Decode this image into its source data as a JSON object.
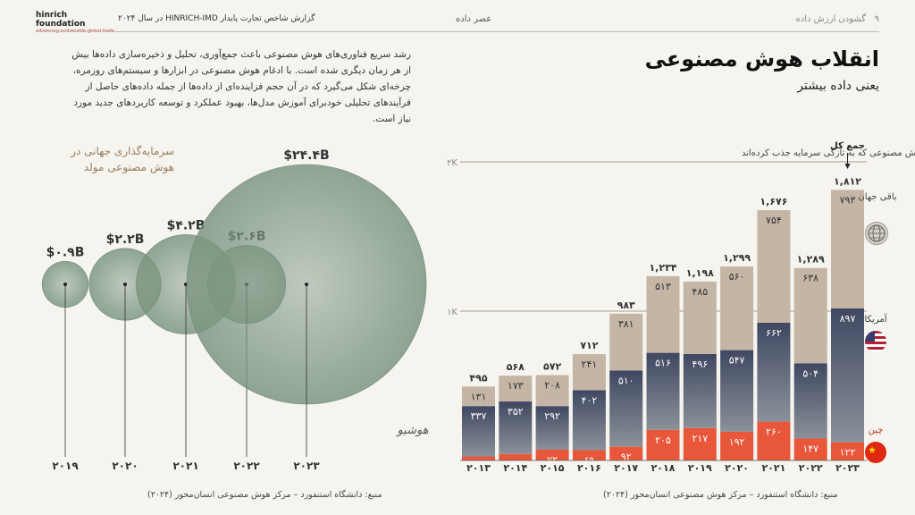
{
  "header": {
    "page_number": "۹",
    "page_section": "گشودن ارزش داده",
    "section": "عصر داده",
    "report": "گزارش شاخص تجارت پایدار HINRICH-IMD در سال ۲۰۲۴",
    "logo_name": "hinrich foundation",
    "logo_tagline": "advancing sustainable global trade"
  },
  "title": "انقلاب هوش مصنوعی",
  "subtitle": "یعنی داده بیشتر",
  "intro": "رشد سریع فناوری‌های هوش مصنوعی باعث جمع‌آوری،  تحلیل و ذخیره‌سازی داده‌ها بیش از هر زمان دیگری شده است. با ادغام هوش مصنوعی در ابزارها و سیستم‌های روزمره، چرخه‌ای شکل می‌گیرد که در آن حجم فزاینده‌ای از داده‌ها از جمله داده‌های حاصل از فرآیندهای تحلیلی خودبرای آموزش مدل‌ها، بهبود عملکرد و توسعه کاربردهای جدید مورد نیاز است.",
  "watermark": "هوشیو",
  "colors": {
    "us": "#505a6e",
    "china": "#e8573a",
    "rest": "#c4b5a5",
    "bubble": "#7c9681"
  },
  "left_source": "منبع: دانشگاه استنفورد – مرکز هوش مصنوعی انسان‌محور (۲۰۲۴)",
  "right_source": "منبع: دانشگاه استنفورد – مرکز هوش مصنوعی انسان‌محور (۲۰۲۴)",
  "chart_data": [
    {
      "type": "bubble",
      "title": "سرمایه‌گذاری جهانی در هوش مصنوعی مولد",
      "categories": [
        "۲۰۱۹",
        "۲۰۲۰",
        "۲۰۲۱",
        "۲۰۲۲",
        "۲۰۲۳"
      ],
      "values": [
        0.9,
        2.2,
        4.2,
        2.6,
        24.4
      ],
      "labels": [
        "$۰.۹B",
        "$۲.۲B",
        "$۴.۲B",
        "$۲.۶B",
        "$۲۴.۴B"
      ]
    },
    {
      "type": "bar",
      "stacked": true,
      "title": "تعداد شرکت‌های هوش مصنوعی که به تازگی سرمایه جذب کرده‌اند",
      "categories": [
        "۲۰۱۳",
        "۲۰۱۴",
        "۲۰۱۵",
        "۲۰۱۶",
        "۲۰۱۷",
        "۲۰۱۸",
        "۲۰۱۹",
        "۲۰۲۰",
        "۲۰۲۱",
        "۲۰۲۲",
        "۲۰۲۳"
      ],
      "series": [
        {
          "name": "چین",
          "values": [
            27,
            43,
            72,
            69,
            92,
            205,
            217,
            192,
            260,
            147,
            122
          ],
          "labels": [
            "۲۷",
            "۴۳",
            "۷۲",
            "۶۹",
            "۹۲",
            "۲۰۵",
            "۲۱۷",
            "۱۹۲",
            "۲۶۰",
            "۱۴۷",
            "۱۲۲"
          ]
        },
        {
          "name": "آمریکا",
          "values": [
            337,
            352,
            292,
            402,
            510,
            516,
            496,
            547,
            662,
            504,
            897
          ],
          "labels": [
            "۳۳۷",
            "۳۵۲",
            "۲۹۲",
            "۴۰۲",
            "۵۱۰",
            "۵۱۶",
            "۴۹۶",
            "۵۴۷",
            "۶۶۲",
            "۵۰۴",
            "۸۹۷"
          ]
        },
        {
          "name": "باقی جهان",
          "values": [
            131,
            173,
            208,
            241,
            381,
            513,
            485,
            560,
            754,
            638,
            793
          ],
          "labels": [
            "۱۳۱",
            "۱۷۳",
            "۲۰۸",
            "۲۴۱",
            "۳۸۱",
            "۵۱۳",
            "۴۸۵",
            "۵۶۰",
            "۷۵۴",
            "۶۳۸",
            "۷۹۳"
          ]
        }
      ],
      "totals": [
        495,
        568,
        572,
        712,
        983,
        1234,
        1198,
        1299,
        1676,
        1289,
        1812
      ],
      "total_labels": [
        "۴۹۵",
        "۵۶۸",
        "۵۷۲",
        "۷۱۲",
        "۹۸۳",
        "۱,۲۳۴",
        "۱,۱۹۸",
        "۱,۲۹۹",
        "۱,۶۷۶",
        "۱,۲۸۹",
        "۱,۸۱۲"
      ],
      "total_label": "جمع کل",
      "gridlines": [
        {
          "value": 1000,
          "label": "۱K"
        },
        {
          "value": 2000,
          "label": "۲K"
        }
      ],
      "ylim": [
        0,
        2000
      ]
    }
  ]
}
